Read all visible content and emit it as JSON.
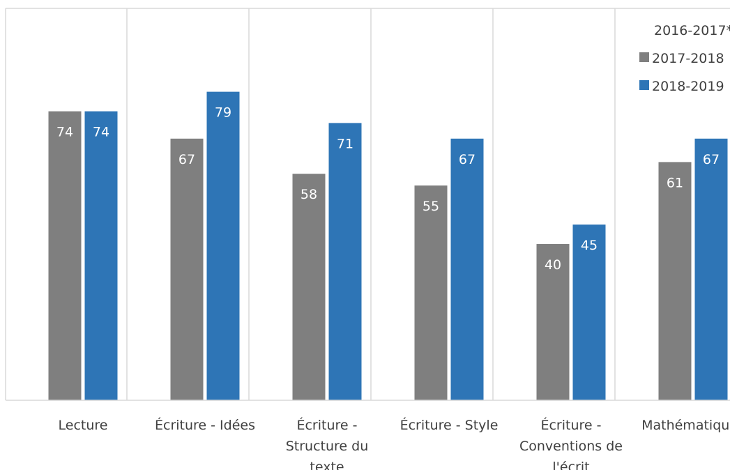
{
  "chart_data": {
    "type": "bar",
    "title": "",
    "xlabel": "",
    "ylabel": "",
    "categories": [
      [
        "Lecture"
      ],
      [
        "Écriture - Idées"
      ],
      [
        "Écriture -",
        "Structure du",
        "texte"
      ],
      [
        "Écriture - Style"
      ],
      [
        "Écriture -",
        "Conventions de",
        "l'écrit"
      ],
      [
        "Mathématiques"
      ]
    ],
    "series": [
      {
        "name": "2016-2017*",
        "color": "#a5a5a5",
        "values": [
          null,
          null,
          null,
          null,
          null,
          null
        ]
      },
      {
        "name": "2017-2018",
        "color": "#7f7f7f",
        "values": [
          74,
          67,
          58,
          55,
          40,
          61
        ]
      },
      {
        "name": "2018-2019",
        "color": "#2e75b6",
        "values": [
          74,
          79,
          71,
          67,
          45,
          67
        ]
      }
    ],
    "ylim": [
      0,
      100
    ],
    "grid": "vertical category separators",
    "legend_position": "top-right",
    "data_labels": true
  }
}
